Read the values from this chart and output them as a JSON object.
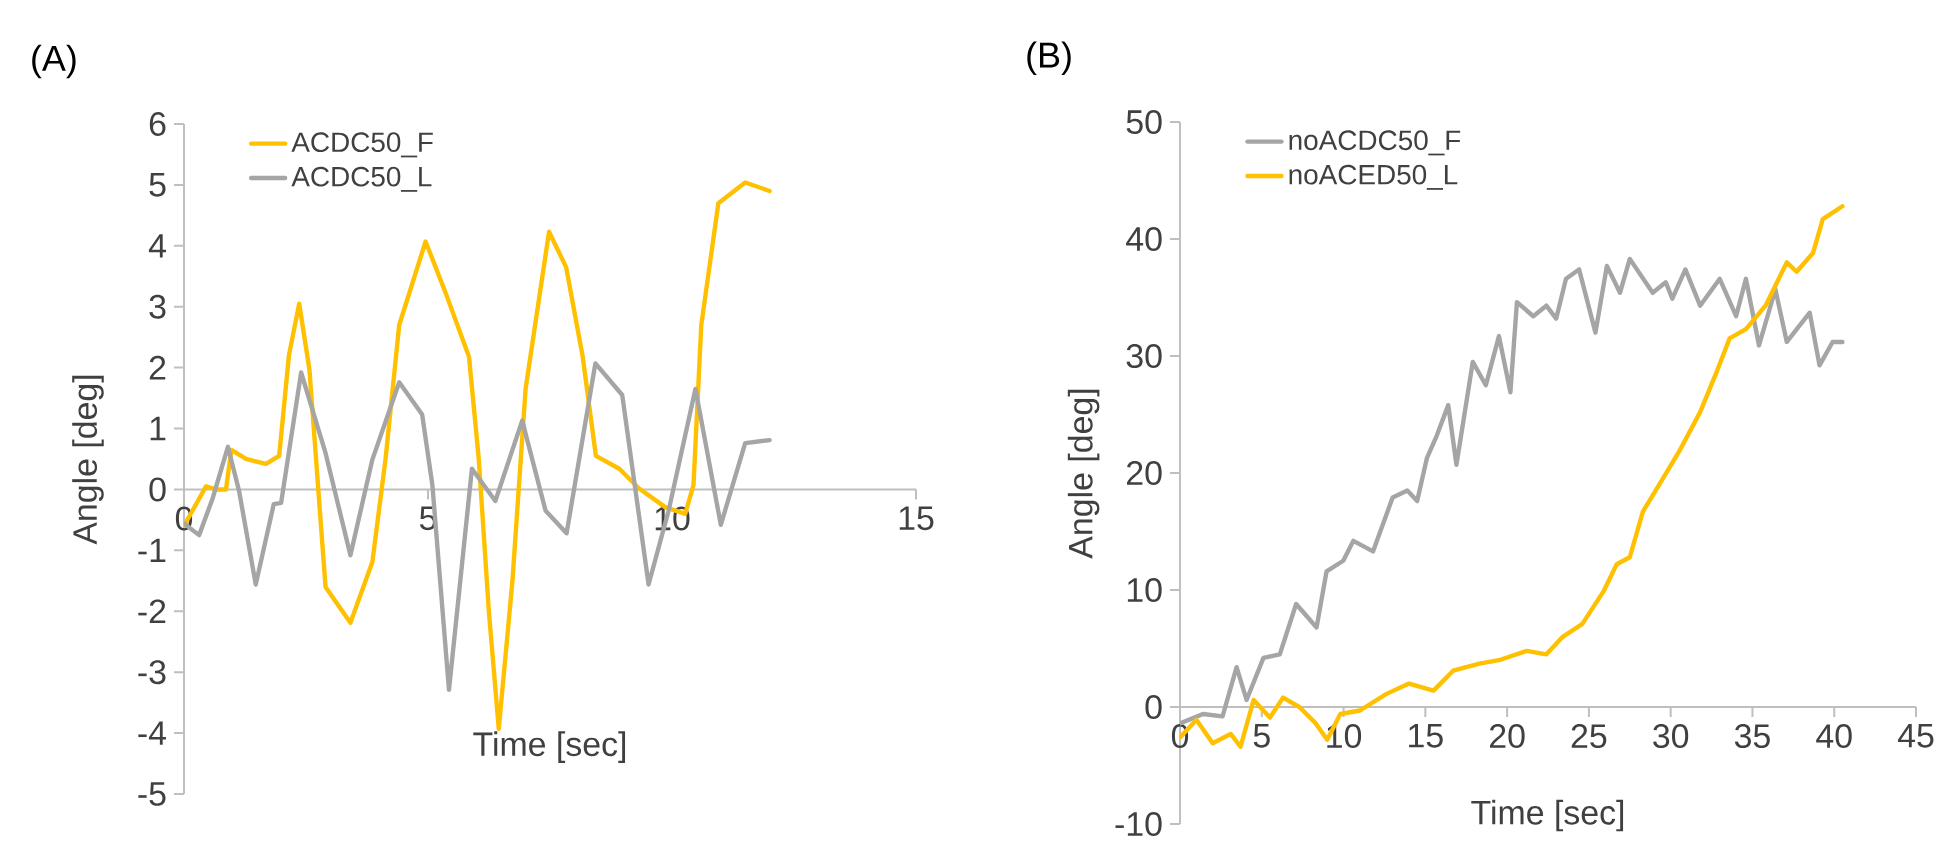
{
  "chart_data": [
    {
      "type": "line",
      "title": "(A)",
      "xlabel": "Time [sec]",
      "ylabel": "Angle [deg]",
      "xlim": [
        0,
        15
      ],
      "ylim": [
        -5,
        6
      ],
      "xticks": [
        0,
        5,
        10,
        15
      ],
      "yticks": [
        -5,
        -4,
        -3,
        -2,
        -1,
        0,
        1,
        2,
        3,
        4,
        5,
        6
      ],
      "legend": "top left",
      "series": [
        {
          "name": "ACDC50_F",
          "color": "#ffc000",
          "x": [
            0,
            0.45,
            0.65,
            0.86,
            0.97,
            1.27,
            1.68,
            1.95,
            2.15,
            2.36,
            2.57,
            2.9,
            3.41,
            3.86,
            4.13,
            4.41,
            4.95,
            5.36,
            5.84,
            6.04,
            6.25,
            6.45,
            6.73,
            7.0,
            7.48,
            7.83,
            8.17,
            8.44,
            8.92,
            9.32,
            9.86,
            10.27,
            10.44,
            10.6,
            10.95,
            11.5,
            12.0
          ],
          "values": [
            -0.6,
            0.05,
            0,
            0,
            0.65,
            0.5,
            0.42,
            0.55,
            2.2,
            3.05,
            1.97,
            -1.6,
            -2.19,
            -1.19,
            0.5,
            2.7,
            4.07,
            3.23,
            2.18,
            0.5,
            -2.03,
            -3.93,
            -1.5,
            1.65,
            4.23,
            3.65,
            2.18,
            0.55,
            0.34,
            0.02,
            -0.29,
            -0.4,
            0.07,
            2.7,
            4.7,
            5.04,
            4.9
          ]
        },
        {
          "name": "ACDC50_L",
          "color": "#a5a5a5",
          "x": [
            0,
            0.31,
            0.59,
            0.9,
            1.13,
            1.47,
            1.84,
            1.99,
            2.4,
            2.9,
            3.41,
            3.86,
            4.41,
            4.88,
            5.09,
            5.43,
            5.9,
            6.38,
            6.93,
            7.41,
            7.84,
            8.43,
            8.98,
            9.52,
            9.93,
            10.48,
            11.0,
            11.5,
            12.0
          ],
          "values": [
            -0.56,
            -0.75,
            -0.14,
            0.7,
            -0.03,
            -1.56,
            -0.24,
            -0.22,
            1.92,
            0.6,
            -1.08,
            0.49,
            1.76,
            1.23,
            0.07,
            -3.29,
            0.34,
            -0.19,
            1.13,
            -0.35,
            -0.72,
            2.07,
            1.55,
            -1.56,
            -0.35,
            1.65,
            -0.58,
            0.76,
            0.81
          ]
        }
      ]
    },
    {
      "type": "line",
      "title": "(B)",
      "xlabel": "Time [sec]",
      "ylabel": "Angle [deg]",
      "xlim": [
        0,
        45
      ],
      "ylim": [
        -10,
        50
      ],
      "xticks": [
        0,
        5,
        10,
        15,
        20,
        25,
        30,
        35,
        40,
        45
      ],
      "yticks": [
        -10,
        0,
        10,
        20,
        30,
        40,
        50
      ],
      "legend": "top left",
      "series": [
        {
          "name": "noACDC50_F",
          "color": "#a5a5a5",
          "x": [
            0,
            1.4,
            2.6,
            3.46,
            4.07,
            5.1,
            6.1,
            7.1,
            8.35,
            8.96,
            9.98,
            10.6,
            11.8,
            13.0,
            13.9,
            14.5,
            15.1,
            15.7,
            16.4,
            16.9,
            17.9,
            18.7,
            19.5,
            20.2,
            20.6,
            21.6,
            22.4,
            23.0,
            23.6,
            24.4,
            25.4,
            26.1,
            26.9,
            27.5,
            28.9,
            29.7,
            30.1,
            30.9,
            31.8,
            33.0,
            34.0,
            34.6,
            35.4,
            36.4,
            37.1,
            38.5,
            39.1,
            39.9,
            40.5
          ],
          "values": [
            -1.4,
            -0.6,
            -0.8,
            3.4,
            0.6,
            4.2,
            4.5,
            8.8,
            6.8,
            11.6,
            12.5,
            14.2,
            13.3,
            17.9,
            18.5,
            17.6,
            21.3,
            23.2,
            25.8,
            20.7,
            29.5,
            27.5,
            31.7,
            26.9,
            34.6,
            33.4,
            34.3,
            33.2,
            36.6,
            37.4,
            32.0,
            37.7,
            35.4,
            38.3,
            35.4,
            36.3,
            34.9,
            37.4,
            34.3,
            36.6,
            33.4,
            36.6,
            30.9,
            35.7,
            31.2,
            33.7,
            29.2,
            31.2,
            31.2
          ]
        },
        {
          "name": "noACED50_L",
          "color": "#ffc000",
          "x": [
            0,
            1.0,
            2.0,
            3.1,
            3.7,
            4.5,
            5.5,
            6.3,
            7.3,
            8.3,
            9.0,
            9.8,
            11.0,
            12.6,
            14.0,
            15.5,
            16.7,
            18.3,
            19.5,
            21.2,
            22.4,
            23.4,
            24.6,
            25.9,
            26.7,
            27.5,
            28.3,
            29.3,
            30.5,
            31.8,
            32.8,
            33.6,
            34.6,
            35.8,
            37.1,
            37.7,
            38.7,
            39.3,
            40.5
          ],
          "values": [
            -2.6,
            -1.1,
            -3.1,
            -2.3,
            -3.4,
            0.6,
            -0.9,
            0.8,
            0,
            -1.4,
            -2.8,
            -0.6,
            -0.3,
            1.1,
            2.0,
            1.4,
            3.1,
            3.7,
            4.0,
            4.8,
            4.5,
            6.0,
            7.1,
            9.9,
            12.2,
            12.8,
            16.7,
            19.0,
            21.8,
            25.2,
            28.6,
            31.5,
            32.3,
            34.3,
            38.0,
            37.2,
            38.8,
            41.7,
            42.8
          ]
        }
      ]
    }
  ]
}
